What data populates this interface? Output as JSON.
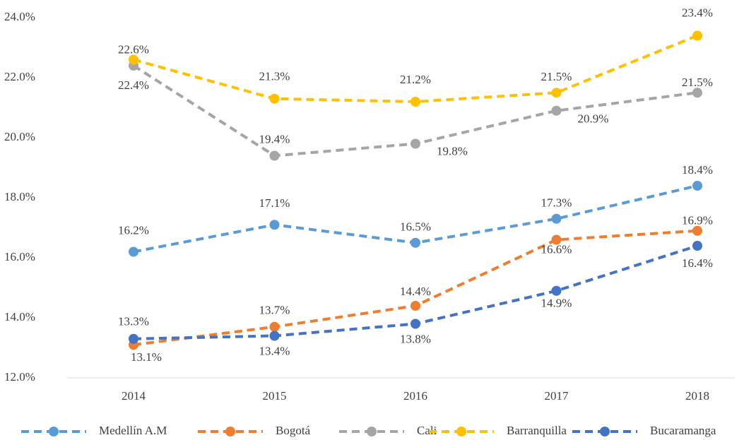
{
  "chart_data": {
    "type": "line",
    "categories": [
      "2014",
      "2015",
      "2016",
      "2017",
      "2018"
    ],
    "series": [
      {
        "name": "Medellín A.M",
        "color": "#5b9bd5",
        "values": [
          16.2,
          17.1,
          16.5,
          17.3,
          18.4
        ],
        "value_labels": [
          "16.2%",
          "17.1%",
          "16.5%",
          "17.3%",
          "18.4%"
        ]
      },
      {
        "name": "Bogotá",
        "color": "#ed7d31",
        "values": [
          13.1,
          13.7,
          14.4,
          16.6,
          16.9
        ],
        "value_labels": [
          "13.1%",
          "13.7%",
          "14.4%",
          "16.6%",
          "16.9%"
        ]
      },
      {
        "name": "Cali",
        "color": "#a5a5a5",
        "values": [
          22.4,
          19.4,
          19.8,
          20.9,
          21.5
        ],
        "value_labels": [
          "22.4%",
          "19.4%",
          "19.8%",
          "20.9%",
          "21.5%"
        ]
      },
      {
        "name": "Barranquilla",
        "color": "#ffc000",
        "values": [
          22.6,
          21.3,
          21.2,
          21.5,
          23.4
        ],
        "value_labels": [
          "22.6%",
          "21.3%",
          "21.2%",
          "21.5%",
          "23.4%"
        ]
      },
      {
        "name": "Bucaramanga",
        "color": "#4472c4",
        "values": [
          13.3,
          13.4,
          13.8,
          14.9,
          16.4
        ],
        "value_labels": [
          "13.3%",
          "13.4%",
          "13.8%",
          "14.9%",
          "16.4%"
        ]
      }
    ],
    "ylim": [
      12,
      24
    ],
    "yticks": [
      {
        "value": 12,
        "label": "12.0%"
      },
      {
        "value": 14,
        "label": "14.0%"
      },
      {
        "value": 16,
        "label": "16.0%"
      },
      {
        "value": 18,
        "label": "18.0%"
      },
      {
        "value": 20,
        "label": "20.0%"
      },
      {
        "value": 22,
        "label": "22.0%"
      },
      {
        "value": 24,
        "label": "24.0%"
      }
    ],
    "grid": false,
    "legend": "bottom"
  }
}
